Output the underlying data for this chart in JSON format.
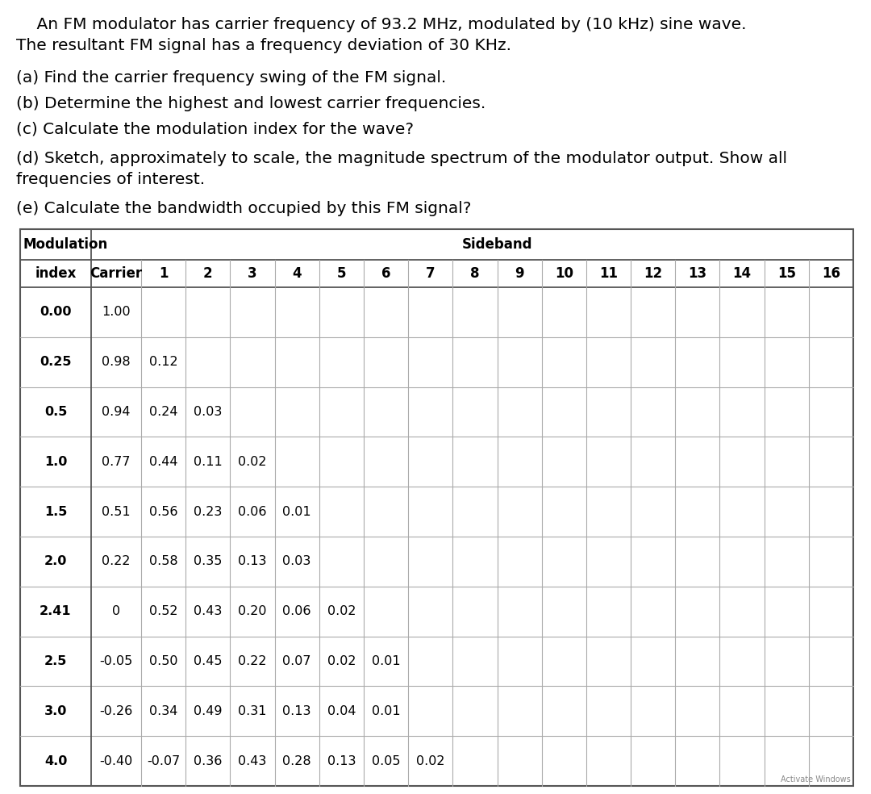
{
  "title_line1": "    An FM modulator has carrier frequency of 93.2 MHz, modulated by (10 kHz) sine wave.",
  "title_line2": "The resultant FM signal has a frequency deviation of 30 KHz.",
  "q_a": "(a) Find the carrier frequency swing of the FM signal.",
  "q_b": "(b) Determine the highest and lowest carrier frequencies.",
  "q_c": "(c) Calculate the modulation index for the wave?",
  "q_d1": "(d) Sketch, approximately to scale, the magnitude spectrum of the modulator output. Show all",
  "q_d2": "frequencies of interest.",
  "q_e": "(e) Calculate the bandwidth occupied by this FM signal?",
  "sideband_cols": [
    "1",
    "2",
    "3",
    "4",
    "5",
    "6",
    "7",
    "8",
    "9",
    "10",
    "11",
    "12",
    "13",
    "14",
    "15",
    "16"
  ],
  "table_data": [
    {
      "index": "0.00",
      "carrier": "1.00",
      "sb": [
        "",
        "",
        "",
        "",
        "",
        "",
        "",
        "",
        "",
        "",
        "",
        "",
        "",
        "",
        "",
        ""
      ]
    },
    {
      "index": "0.25",
      "carrier": "0.98",
      "sb": [
        "0.12",
        "",
        "",
        "",
        "",
        "",
        "",
        "",
        "",
        "",
        "",
        "",
        "",
        "",
        "",
        ""
      ]
    },
    {
      "index": "0.5",
      "carrier": "0.94",
      "sb": [
        "0.24",
        "0.03",
        "",
        "",
        "",
        "",
        "",
        "",
        "",
        "",
        "",
        "",
        "",
        "",
        "",
        ""
      ]
    },
    {
      "index": "1.0",
      "carrier": "0.77",
      "sb": [
        "0.44",
        "0.11",
        "0.02",
        "",
        "",
        "",
        "",
        "",
        "",
        "",
        "",
        "",
        "",
        "",
        "",
        ""
      ]
    },
    {
      "index": "1.5",
      "carrier": "0.51",
      "sb": [
        "0.56",
        "0.23",
        "0.06",
        "0.01",
        "",
        "",
        "",
        "",
        "",
        "",
        "",
        "",
        "",
        "",
        "",
        ""
      ]
    },
    {
      "index": "2.0",
      "carrier": "0.22",
      "sb": [
        "0.58",
        "0.35",
        "0.13",
        "0.03",
        "",
        "",
        "",
        "",
        "",
        "",
        "",
        "",
        "",
        "",
        "",
        ""
      ]
    },
    {
      "index": "2.41",
      "carrier": "0",
      "sb": [
        "0.52",
        "0.43",
        "0.20",
        "0.06",
        "0.02",
        "",
        "",
        "",
        "",
        "",
        "",
        "",
        "",
        "",
        "",
        ""
      ]
    },
    {
      "index": "2.5",
      "carrier": "-0.05",
      "sb": [
        "0.50",
        "0.45",
        "0.22",
        "0.07",
        "0.02",
        "0.01",
        "",
        "",
        "",
        "",
        "",
        "",
        "",
        "",
        "",
        ""
      ]
    },
    {
      "index": "3.0",
      "carrier": "-0.26",
      "sb": [
        "0.34",
        "0.49",
        "0.31",
        "0.13",
        "0.04",
        "0.01",
        "",
        "",
        "",
        "",
        "",
        "",
        "",
        "",
        "",
        ""
      ]
    },
    {
      "index": "4.0",
      "carrier": "-0.40",
      "sb": [
        "-0.07",
        "0.36",
        "0.43",
        "0.28",
        "0.13",
        "0.05",
        "0.02",
        "",
        "",
        "",
        "",
        "",
        "",
        "",
        "",
        ""
      ]
    }
  ],
  "bg_color": "#ffffff",
  "text_color": "#000000",
  "border_color": "#555555",
  "grid_color": "#aaaaaa",
  "watermark": "Activate Windows",
  "fs_body": 14.5,
  "fs_table_header": 12,
  "fs_table_data": 11.5,
  "fs_watermark": 7
}
